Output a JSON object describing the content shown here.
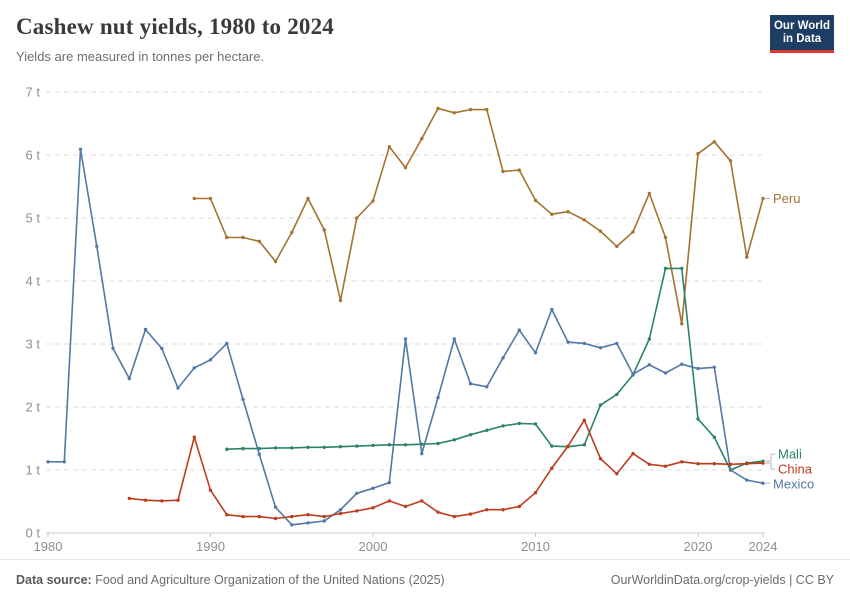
{
  "header": {
    "title": "Cashew nut yields, 1980 to 2024",
    "subtitle": "Yields are measured in tonnes per hectare."
  },
  "logo": {
    "line1": "Our World",
    "line2": "in Data"
  },
  "footer": {
    "datasource_label": "Data source:",
    "datasource_text": " Food and Agriculture Organization of the United Nations (2025)",
    "link": "OurWorldinData.org/crop-yields",
    "separator": " | ",
    "license": "CC BY"
  },
  "colors": {
    "peru": "#A3732F",
    "mali": "#2C8465",
    "china": "#BC3D1D",
    "mexico": "#5278A5",
    "grid": "#dedede",
    "axis": "#c8c8c8",
    "tick_text": "#8f8f8f",
    "connector": "#b8b8b8",
    "logo_bg": "#1d3d63",
    "logo_stripe": "#dc3b2d"
  },
  "chart_data": {
    "type": "line",
    "title": "Cashew nut yields, 1980 to 2024",
    "subtitle": "Yields are measured in tonnes per hectare.",
    "xlabel": "",
    "ylabel": "tonnes per hectare",
    "unit": " t",
    "xlim": [
      1980,
      2024
    ],
    "ylim": [
      0,
      7
    ],
    "xticks": [
      1980,
      1990,
      2000,
      2010,
      2020,
      2024
    ],
    "yticks": [
      0,
      1,
      2,
      3,
      4,
      5,
      6,
      7
    ],
    "grid": "horizontal-dashed",
    "legend_position": "right-end-labels",
    "series": [
      {
        "name": "Peru",
        "color": "#A3732F",
        "points": [
          [
            1989,
            5.31
          ],
          [
            1990,
            5.31
          ],
          [
            1991,
            4.69
          ],
          [
            1992,
            4.69
          ],
          [
            1993,
            4.63
          ],
          [
            1994,
            4.31
          ],
          [
            1995,
            4.77
          ],
          [
            1996,
            5.31
          ],
          [
            1997,
            4.81
          ],
          [
            1998,
            3.69
          ],
          [
            1999,
            5.0
          ],
          [
            2000,
            5.27
          ],
          [
            2001,
            6.13
          ],
          [
            2002,
            5.8
          ],
          [
            2003,
            6.26
          ],
          [
            2004,
            6.74
          ],
          [
            2005,
            6.67
          ],
          [
            2006,
            6.72
          ],
          [
            2007,
            6.72
          ],
          [
            2008,
            5.74
          ],
          [
            2009,
            5.76
          ],
          [
            2010,
            5.28
          ],
          [
            2011,
            5.06
          ],
          [
            2012,
            5.1
          ],
          [
            2013,
            4.97
          ],
          [
            2014,
            4.79
          ],
          [
            2015,
            4.55
          ],
          [
            2016,
            4.78
          ],
          [
            2017,
            5.39
          ],
          [
            2018,
            4.69
          ],
          [
            2019,
            3.32
          ],
          [
            2020,
            6.02
          ],
          [
            2021,
            6.21
          ],
          [
            2022,
            5.91
          ],
          [
            2023,
            4.38
          ],
          [
            2024,
            5.31
          ]
        ]
      },
      {
        "name": "Mali",
        "color": "#2C8465",
        "points": [
          [
            1991,
            1.33
          ],
          [
            1992,
            1.34
          ],
          [
            1993,
            1.34
          ],
          [
            1994,
            1.35
          ],
          [
            1995,
            1.35
          ],
          [
            1996,
            1.36
          ],
          [
            1997,
            1.36
          ],
          [
            1998,
            1.37
          ],
          [
            1999,
            1.38
          ],
          [
            2000,
            1.39
          ],
          [
            2001,
            1.4
          ],
          [
            2002,
            1.4
          ],
          [
            2003,
            1.41
          ],
          [
            2004,
            1.42
          ],
          [
            2005,
            1.48
          ],
          [
            2006,
            1.56
          ],
          [
            2007,
            1.63
          ],
          [
            2008,
            1.7
          ],
          [
            2009,
            1.74
          ],
          [
            2010,
            1.73
          ],
          [
            2011,
            1.38
          ],
          [
            2012,
            1.37
          ],
          [
            2013,
            1.4
          ],
          [
            2014,
            2.03
          ],
          [
            2015,
            2.2
          ],
          [
            2016,
            2.51
          ],
          [
            2017,
            3.08
          ],
          [
            2018,
            4.2
          ],
          [
            2019,
            4.2
          ],
          [
            2020,
            1.81
          ],
          [
            2021,
            1.52
          ],
          [
            2022,
            1.0
          ],
          [
            2023,
            1.11
          ],
          [
            2024,
            1.14
          ]
        ]
      },
      {
        "name": "Mexico",
        "color": "#5278A5",
        "points": [
          [
            1980,
            1.13
          ],
          [
            1981,
            1.13
          ],
          [
            1982,
            6.09
          ],
          [
            1983,
            4.55
          ],
          [
            1984,
            2.93
          ],
          [
            1985,
            2.45
          ],
          [
            1986,
            3.23
          ],
          [
            1987,
            2.93
          ],
          [
            1988,
            2.3
          ],
          [
            1989,
            2.62
          ],
          [
            1990,
            2.75
          ],
          [
            1991,
            3.01
          ],
          [
            1992,
            2.12
          ],
          [
            1993,
            1.25
          ],
          [
            1994,
            0.41
          ],
          [
            1995,
            0.13
          ],
          [
            1996,
            0.16
          ],
          [
            1997,
            0.19
          ],
          [
            1998,
            0.37
          ],
          [
            1999,
            0.63
          ],
          [
            2000,
            0.71
          ],
          [
            2001,
            0.8
          ],
          [
            2002,
            3.08
          ],
          [
            2003,
            1.26
          ],
          [
            2004,
            2.15
          ],
          [
            2005,
            3.08
          ],
          [
            2006,
            2.37
          ],
          [
            2007,
            2.32
          ],
          [
            2008,
            2.78
          ],
          [
            2009,
            3.22
          ],
          [
            2010,
            2.86
          ],
          [
            2011,
            3.55
          ],
          [
            2012,
            3.03
          ],
          [
            2013,
            3.01
          ],
          [
            2014,
            2.94
          ],
          [
            2015,
            3.01
          ],
          [
            2016,
            2.52
          ],
          [
            2017,
            2.67
          ],
          [
            2018,
            2.54
          ],
          [
            2019,
            2.68
          ],
          [
            2020,
            2.61
          ],
          [
            2021,
            2.63
          ],
          [
            2022,
            1.0
          ],
          [
            2023,
            0.84
          ],
          [
            2024,
            0.79
          ]
        ]
      },
      {
        "name": "China",
        "color": "#BC3D1D",
        "points": [
          [
            1985,
            0.55
          ],
          [
            1986,
            0.52
          ],
          [
            1987,
            0.51
          ],
          [
            1988,
            0.52
          ],
          [
            1989,
            1.52
          ],
          [
            1990,
            0.68
          ],
          [
            1991,
            0.29
          ],
          [
            1992,
            0.26
          ],
          [
            1993,
            0.26
          ],
          [
            1994,
            0.23
          ],
          [
            1995,
            0.26
          ],
          [
            1996,
            0.29
          ],
          [
            1997,
            0.26
          ],
          [
            1998,
            0.31
          ],
          [
            1999,
            0.35
          ],
          [
            2000,
            0.4
          ],
          [
            2001,
            0.51
          ],
          [
            2002,
            0.42
          ],
          [
            2003,
            0.51
          ],
          [
            2004,
            0.33
          ],
          [
            2005,
            0.26
          ],
          [
            2006,
            0.3
          ],
          [
            2007,
            0.37
          ],
          [
            2008,
            0.37
          ],
          [
            2009,
            0.42
          ],
          [
            2010,
            0.64
          ],
          [
            2011,
            1.03
          ],
          [
            2012,
            1.38
          ],
          [
            2013,
            1.79
          ],
          [
            2014,
            1.18
          ],
          [
            2015,
            0.94
          ],
          [
            2016,
            1.26
          ],
          [
            2017,
            1.09
          ],
          [
            2018,
            1.06
          ],
          [
            2019,
            1.13
          ],
          [
            2020,
            1.1
          ],
          [
            2021,
            1.1
          ],
          [
            2022,
            1.09
          ],
          [
            2023,
            1.1
          ],
          [
            2024,
            1.11
          ]
        ]
      }
    ]
  }
}
